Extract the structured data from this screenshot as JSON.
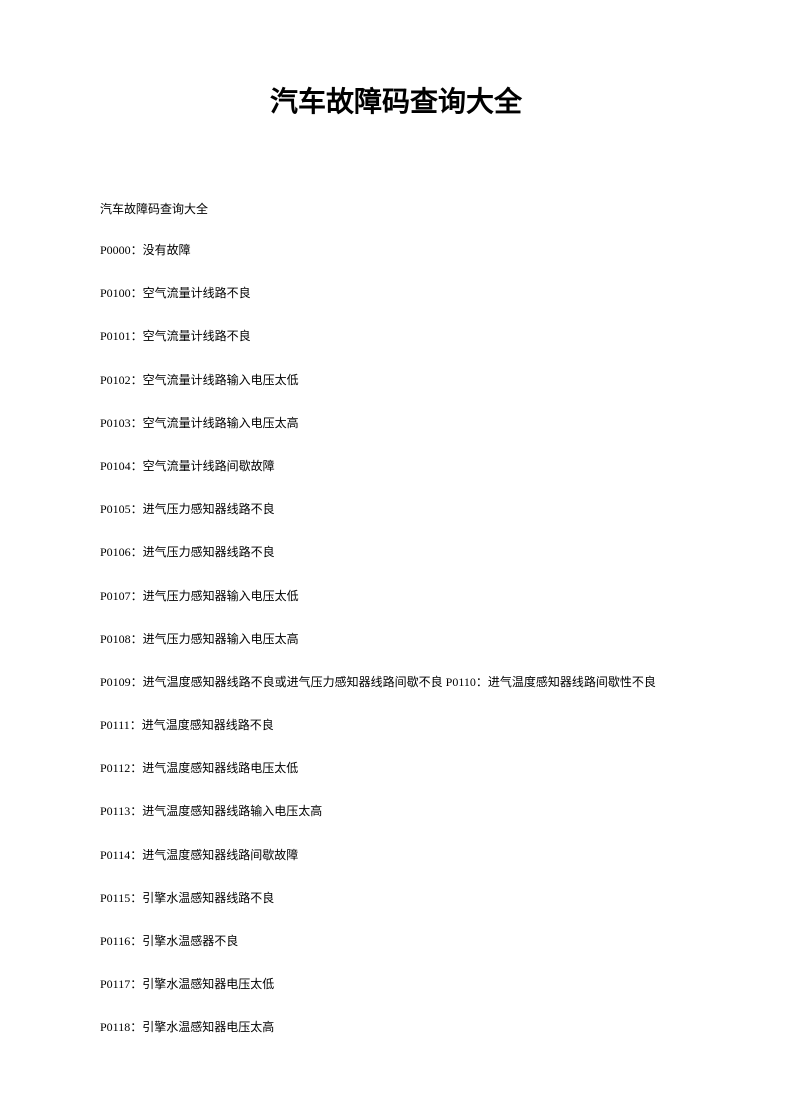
{
  "title": "汽车故障码查询大全",
  "subtitle": "汽车故障码查询大全",
  "codes": [
    "P0000：没有故障",
    "P0100：空气流量计线路不良",
    "P0101：空气流量计线路不良",
    "P0102：空气流量计线路输入电压太低",
    "P0103：空气流量计线路输入电压太高",
    "P0104：空气流量计线路间歇故障",
    "P0105：进气压力感知器线路不良",
    "P0106：进气压力感知器线路不良",
    "P0107：进气压力感知器输入电压太低",
    "P0108：进气压力感知器输入电压太高",
    "P0109：进气温度感知器线路不良或进气压力感知器线路间歇不良 P0110：进气温度感知器线路间歇性不良",
    "P0111：进气温度感知器线路不良",
    "P0112：进气温度感知器线路电压太低",
    "P0113：进气温度感知器线路输入电压太高",
    "P0114：进气温度感知器线路间歇故障",
    "P0115：引擎水温感知器线路不良",
    "P0116：引擎水温感器不良",
    "P0117：引擎水温感知器电压太低",
    "P0118：引擎水温感知器电压太高"
  ],
  "colors": {
    "background": "#ffffff",
    "text": "#000000"
  },
  "typography": {
    "title_fontsize": 28,
    "title_weight": "bold",
    "body_fontsize": 12,
    "line_spacing": 24
  }
}
